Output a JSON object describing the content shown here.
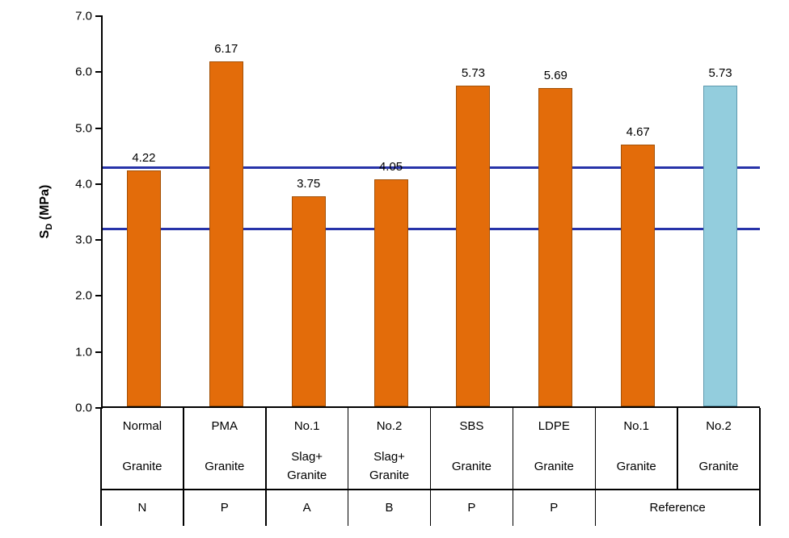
{
  "chart_data": {
    "type": "bar",
    "title": "",
    "xlabel": "",
    "ylabel": "S_D (MPa)",
    "ylabel_parts": {
      "main": "S",
      "sub": "D",
      "rest": " (MPa)"
    },
    "ylim": [
      0,
      7
    ],
    "ytick_step": 1.0,
    "yticks": [
      {
        "value": 0,
        "label": "0.0"
      },
      {
        "value": 1,
        "label": "1.0"
      },
      {
        "value": 2,
        "label": "2.0"
      },
      {
        "value": 3,
        "label": "3.0"
      },
      {
        "value": 4,
        "label": "4.0"
      },
      {
        "value": 5,
        "label": "5.0"
      },
      {
        "value": 6,
        "label": "6.0"
      },
      {
        "value": 7,
        "label": "7.0"
      }
    ],
    "categories": [
      {
        "name": "Normal",
        "sub": [
          "Granite"
        ]
      },
      {
        "name": "PMA",
        "sub": [
          "Granite"
        ]
      },
      {
        "name": "No.1",
        "sub": [
          "Slag+",
          "Granite"
        ]
      },
      {
        "name": "No.2",
        "sub": [
          "Slag+",
          "Granite"
        ]
      },
      {
        "name": "SBS",
        "sub": [
          "Granite"
        ]
      },
      {
        "name": "LDPE",
        "sub": [
          "Granite"
        ]
      },
      {
        "name": "No.1",
        "sub": [
          "Granite"
        ]
      },
      {
        "name": "No.2",
        "sub": [
          "Granite"
        ]
      }
    ],
    "groups": [
      {
        "label": "N",
        "span": 1
      },
      {
        "label": "P",
        "span": 1
      },
      {
        "label": "A",
        "span": 1
      },
      {
        "label": "B",
        "span": 1
      },
      {
        "label": "P",
        "span": 1
      },
      {
        "label": "P",
        "span": 1
      },
      {
        "label": "Reference",
        "span": 2
      }
    ],
    "values": [
      4.22,
      6.17,
      3.75,
      4.05,
      5.73,
      5.69,
      4.67,
      5.73
    ],
    "value_labels": [
      "4.22",
      "6.17",
      "3.75",
      "4.05",
      "5.73",
      "5.69",
      "4.67",
      "5.73"
    ],
    "bar_styles": [
      "orange",
      "orange",
      "orange",
      "orange",
      "orange",
      "orange",
      "orange",
      "blue"
    ],
    "reference_lines": [
      4.3,
      3.2
    ],
    "legend": "none",
    "grid": "off",
    "colors": {
      "orange_fill": "#E36C0A",
      "orange_border": "#A35107",
      "blue_fill": "#93CDDD",
      "blue_border": "#5E99AE",
      "ref_line": "#2733A9",
      "axis": "#000000",
      "text": "#000000"
    }
  }
}
